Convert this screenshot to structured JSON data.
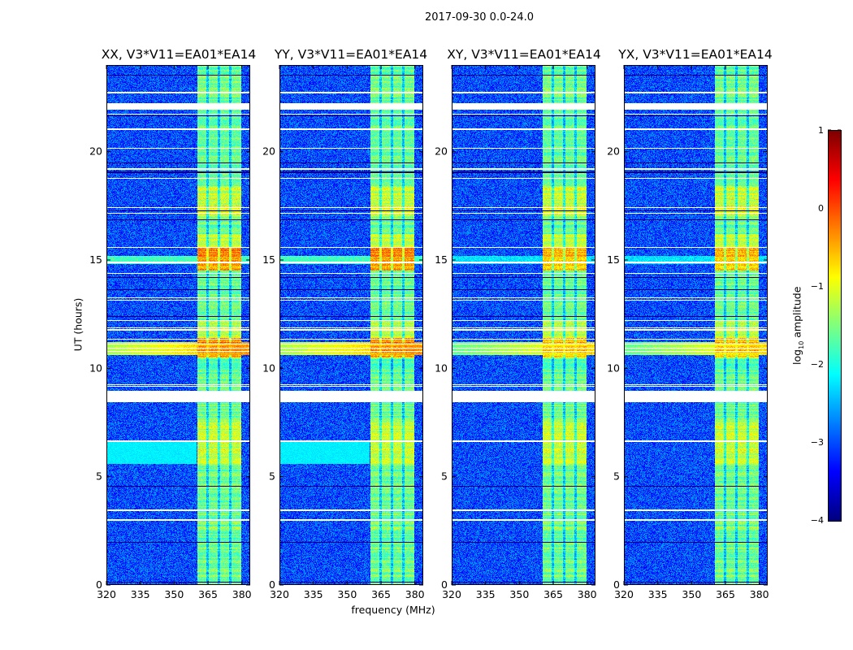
{
  "suptitle": "2017-09-30 0.0-24.0",
  "chart_data": {
    "type": "heatmap",
    "xlabel": "frequency (MHz)",
    "ylabel": "UT (hours)",
    "xlim": [
      320,
      383.7
    ],
    "ylim": [
      0,
      24
    ],
    "xticks": [
      "320",
      "335",
      "350",
      "365",
      "380"
    ],
    "xtick_values": [
      320,
      335,
      350,
      365,
      380
    ],
    "yticks": [
      "0",
      "5",
      "10",
      "15",
      "20"
    ],
    "ytick_values": [
      0,
      5,
      10,
      15,
      20
    ],
    "panels": [
      {
        "id": "xx",
        "title": "XX, V3*V11=EA01*EA14",
        "cross_strength": 1.0,
        "wideband_6h": true
      },
      {
        "id": "yy",
        "title": "YY, V3*V11=EA01*EA14",
        "cross_strength": 1.0,
        "wideband_6h": true
      },
      {
        "id": "xy",
        "title": "XY, V3*V11=EA01*EA14",
        "cross_strength": 0.8,
        "wideband_6h": false
      },
      {
        "id": "yx",
        "title": "YX, V3*V11=EA01*EA14",
        "cross_strength": 0.8,
        "wideband_6h": false
      }
    ],
    "rfi_band_mhz": [
      360.3,
      379.7
    ],
    "rfi_channel_gaps_mhz": [
      364.8,
      369.8,
      374.8
    ],
    "strong_rfi_hours": [
      [
        14.5,
        15.6
      ],
      [
        10.5,
        11.4
      ]
    ],
    "enhanced_rfi_hours": [
      [
        11.4,
        12.2
      ],
      [
        15.6,
        16.2
      ],
      [
        5.5,
        7.6
      ],
      [
        17.0,
        18.4
      ]
    ],
    "flagged_hours": [
      [
        21.95,
        22.25
      ],
      [
        8.45,
        8.95
      ],
      [
        22.7,
        22.78
      ],
      [
        6.6,
        6.68
      ],
      [
        3.4,
        3.5
      ],
      [
        2.95,
        3.02
      ]
    ],
    "background_log_amp": -3.0,
    "colorbar": {
      "label_main": "log",
      "label_sub": "10",
      "label_rest": " amplitude",
      "range": [
        -4,
        1
      ],
      "ticks": [
        "1",
        "0",
        "−1",
        "−2",
        "−3",
        "−4"
      ],
      "tick_values": [
        1,
        0,
        -1,
        -2,
        -3,
        -4
      ],
      "colormap": "jet"
    }
  }
}
